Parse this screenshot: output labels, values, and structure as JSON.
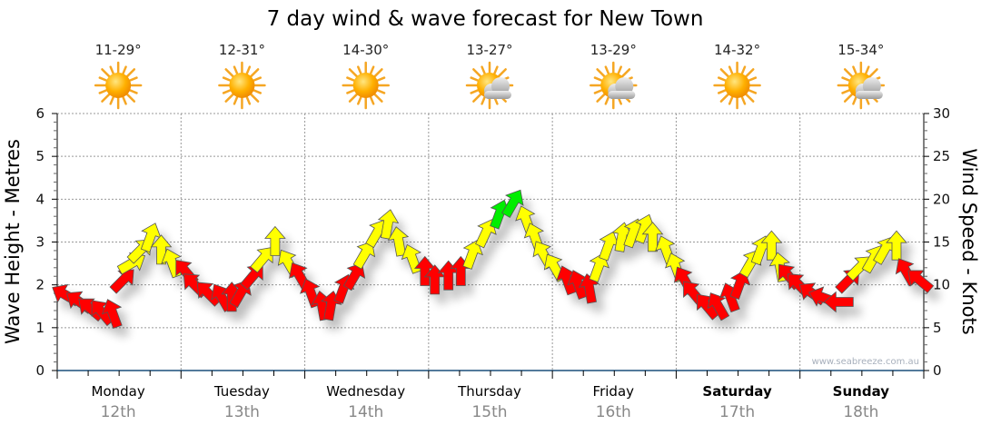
{
  "chart_data": {
    "type": "scatter",
    "title": "7 day wind & wave forecast for New Town",
    "ylabel_left": "Wave Height - Metres",
    "ylabel_right": "Wind Speed - Knots",
    "ylim_left": [
      0,
      6
    ],
    "ylim_right": [
      0,
      30
    ],
    "yticks_left": [
      "0",
      "1",
      "2",
      "3",
      "4",
      "5",
      "6"
    ],
    "yticks_right": [
      "0",
      "5",
      "10",
      "15",
      "20",
      "25",
      "30"
    ],
    "grid": true,
    "watermark": "www.seabreeze.com.au",
    "days": [
      {
        "name": "Monday",
        "date": "12th",
        "temp": "11-29°",
        "weather": "sunny",
        "bold": false
      },
      {
        "name": "Tuesday",
        "date": "13th",
        "temp": "12-31°",
        "weather": "sunny",
        "bold": false
      },
      {
        "name": "Wednesday",
        "date": "14th",
        "temp": "14-30°",
        "weather": "sunny",
        "bold": false
      },
      {
        "name": "Thursday",
        "date": "15th",
        "temp": "13-27°",
        "weather": "partly-cloudy",
        "bold": false
      },
      {
        "name": "Friday",
        "date": "16th",
        "temp": "13-29°",
        "weather": "partly-cloudy",
        "bold": false
      },
      {
        "name": "Saturday",
        "date": "17th",
        "temp": "14-32°",
        "weather": "sunny",
        "bold": true
      },
      {
        "name": "Sunday",
        "date": "18th",
        "temp": "15-34°",
        "weather": "partly-cloudy",
        "bold": true
      }
    ],
    "colors": {
      "low": "#ff0000",
      "mid": "#ffff00",
      "high": "#00ee00",
      "grid": "#999999"
    },
    "thresholds_knots": [
      12,
      18
    ],
    "wind_series": {
      "name": "Wind speed (knots) & direction (deg, 0 = arrow pointing up)",
      "t_days": [
        0.07,
        0.18,
        0.27,
        0.36,
        0.45,
        0.53,
        0.6,
        0.67,
        0.75,
        0.84,
        0.93,
        1.04,
        1.11,
        1.22,
        1.33,
        1.41,
        1.48,
        1.58,
        1.66,
        1.76,
        1.87,
        1.96,
        2.05,
        2.14,
        2.21,
        2.31,
        2.4,
        2.48,
        2.58,
        2.67,
        2.76,
        2.87,
        2.97,
        3.05,
        3.16,
        3.26,
        3.35,
        3.46,
        3.57,
        3.68,
        3.79,
        3.86,
        3.93,
        4.02,
        4.12,
        4.21,
        4.3,
        4.37,
        4.45,
        4.56,
        4.65,
        4.74,
        4.81,
        4.92,
        5.0,
        5.07,
        5.14,
        5.25,
        5.34,
        5.44,
        5.51,
        5.6,
        5.68,
        5.77,
        5.84,
        5.91,
        5.99,
        6.1,
        6.19,
        6.32,
        6.39,
        6.48,
        6.59,
        6.68,
        6.78,
        6.86,
        6.97
      ],
      "knots": [
        8.8,
        8.0,
        7.2,
        6.8,
        6.6,
        10.5,
        12.5,
        14,
        15.5,
        14,
        12.5,
        11.5,
        10,
        9,
        8.5,
        8.5,
        9,
        11,
        13,
        15,
        12.5,
        11,
        9,
        7.5,
        7.5,
        9.5,
        11,
        13.5,
        16,
        17,
        15,
        13,
        11.5,
        10.5,
        11,
        11.5,
        13.5,
        16,
        18.2,
        19.5,
        17.5,
        15.5,
        13.5,
        12,
        10.5,
        10,
        9.5,
        12,
        14.5,
        15.5,
        16,
        16.5,
        15.5,
        14,
        12,
        10.5,
        9,
        7.5,
        7.5,
        8.5,
        10,
        12.5,
        14,
        14.5,
        12,
        11,
        10,
        9,
        8.5,
        8,
        10.5,
        12,
        13,
        14,
        14.5,
        11.5,
        10.5
      ],
      "direction": [
        -60,
        -55,
        -50,
        -40,
        -20,
        45,
        60,
        45,
        20,
        0,
        -20,
        -40,
        -45,
        -45,
        -30,
        0,
        30,
        40,
        40,
        0,
        -30,
        -30,
        -20,
        -10,
        10,
        20,
        30,
        30,
        30,
        10,
        -10,
        -20,
        0,
        0,
        0,
        0,
        20,
        25,
        20,
        30,
        -20,
        -20,
        -30,
        -30,
        -20,
        -20,
        -10,
        20,
        20,
        10,
        20,
        20,
        0,
        -20,
        -20,
        -30,
        -40,
        -40,
        -30,
        -20,
        20,
        30,
        20,
        0,
        -10,
        -40,
        -45,
        -55,
        -70,
        -90,
        45,
        45,
        30,
        30,
        0,
        -30,
        -50
      ]
    }
  }
}
